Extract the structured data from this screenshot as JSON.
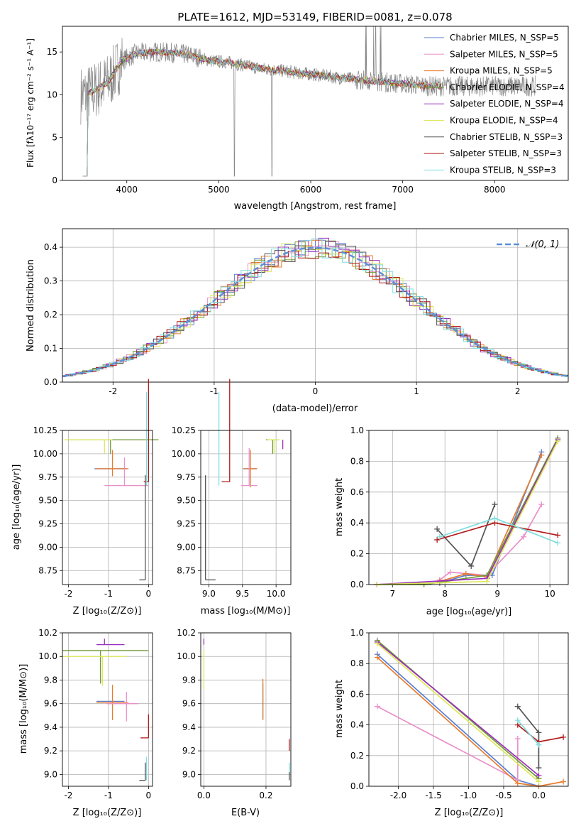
{
  "palette": {
    "chabrier_miles": "#5b7fd1",
    "salpeter_miles": "#e98fc9",
    "kroupa_miles": "#e87c2e",
    "chabrier_elodie": "#6f9a35",
    "salpeter_elodie": "#9b2fbd",
    "kroupa_elodie": "#dde85a",
    "chabrier_stelib": "#555555",
    "salpeter_stelib": "#b11d1d",
    "kroupa_stelib": "#7fdede",
    "grid": "#b0b0b0"
  },
  "chart_data": [
    {
      "id": "spectrum",
      "type": "line",
      "title": "PLATE=1612, MJD=53149, FIBERID=0081, z=0.078",
      "xlabel": "wavelength [Angstrom, rest frame]",
      "ylabel": "Flux [fλ10⁻¹⁷ erg cm⁻² s⁻¹ A⁻¹]",
      "xlim": [
        3300,
        8800
      ],
      "ylim": [
        0,
        18
      ],
      "xticks": [
        4000,
        5000,
        6000,
        7000,
        8000
      ],
      "yticks": [
        0,
        5,
        10,
        15
      ],
      "grid": false,
      "legend_position": "upper-right",
      "legend": [
        "Chabrier MILES, N_SSP=5",
        "Salpeter MILES, N_SSP=5",
        "Kroupa MILES, N_SSP=5",
        "Chabrier ELODIE, N_SSP=4",
        "Salpeter ELODIE, N_SSP=4",
        "Kroupa ELODIE, N_SSP=4",
        "Chabrier STELIB, N_SSP=3",
        "Salpeter STELIB, N_SSP=3",
        "Kroupa STELIB, N_SSP=3"
      ],
      "legend_colors": [
        "#5b7fd1",
        "#e98fc9",
        "#e87c2e",
        "#6f9a35",
        "#9b2fbd",
        "#dde85a",
        "#555555",
        "#b11d1d",
        "#7fdede"
      ],
      "continuum": {
        "x": [
          3550,
          3650,
          3800,
          3950,
          4100,
          4300,
          4500,
          4700,
          4900,
          5100,
          5300,
          5500,
          5700,
          5900,
          6100,
          6300,
          6500,
          6700,
          6900,
          7100,
          7300,
          7450
        ],
        "y": [
          10.0,
          10.5,
          11.5,
          14.0,
          14.8,
          15.0,
          14.9,
          14.6,
          14.0,
          13.8,
          13.4,
          13.0,
          12.8,
          12.5,
          12.3,
          12.0,
          11.8,
          11.6,
          11.4,
          11.2,
          11.0,
          11.0
        ]
      },
      "data_extent": [
        3500,
        8450
      ]
    },
    {
      "id": "residuals",
      "type": "histogram",
      "xlabel": "(data-model)/error",
      "ylabel": "Normed distribution",
      "xlim": [
        -2.5,
        2.5
      ],
      "ylim": [
        0,
        0.455
      ],
      "xticks": [
        -2,
        -1,
        0,
        1,
        2
      ],
      "yticks": [
        0.0,
        0.1,
        0.2,
        0.3,
        0.4
      ],
      "grid": true,
      "legend": [
        "𝒩(0, 1)"
      ],
      "legend_position": "upper-right",
      "gaussian": {
        "mean": 0,
        "sigma": 1
      }
    },
    {
      "id": "age_vs_Z",
      "type": "errorbar",
      "xlabel": "Z [log₁₀(Z/Z⊙)]",
      "ylabel": "age  [log₁₀(age/yr)]",
      "xlim": [
        -2.15,
        0.1
      ],
      "ylim": [
        8.6,
        10.25
      ],
      "xticks": [
        -2,
        -1,
        0
      ],
      "yticks": [
        8.75,
        9.0,
        9.25,
        9.5,
        9.75,
        10.0,
        10.25
      ],
      "grid": true,
      "points": [
        {
          "series": "chabrier_elodie",
          "x": -0.95,
          "y": 10.15,
          "xerr": [
            1.1,
            1.2
          ],
          "yerr": [
            0.15,
            0.0
          ]
        },
        {
          "series": "kroupa_elodie",
          "x": -1.1,
          "y": 10.15,
          "xerr": [
            1.0,
            0.2
          ],
          "yerr": [
            0.15,
            0.0
          ]
        },
        {
          "series": "chabrier_miles",
          "x": -0.95,
          "y": 9.84,
          "xerr": [
            0.4,
            0.4
          ],
          "yerr": [
            0.0,
            0.0
          ]
        },
        {
          "series": "kroupa_miles",
          "x": -0.9,
          "y": 9.84,
          "xerr": [
            0.4,
            0.4
          ],
          "yerr": [
            0.08,
            0.2
          ]
        },
        {
          "series": "salpeter_miles",
          "x": -0.6,
          "y": 9.66,
          "xerr": [
            0.5,
            0.6
          ],
          "yerr": [
            0.0,
            0.3
          ]
        },
        {
          "series": "chabrier_stelib",
          "x": -0.08,
          "y": 8.65,
          "xerr": [
            0.15,
            0.0
          ],
          "yerr": [
            0.0,
            1.12
          ]
        },
        {
          "series": "salpeter_stelib",
          "x": 0.0,
          "y": 9.7,
          "xerr": [
            0.12,
            0.0
          ],
          "yerr": [
            0.0,
            1.1
          ]
        },
        {
          "series": "kroupa_stelib",
          "x": -0.05,
          "y": 9.66,
          "xerr": [
            0.0,
            0.0
          ],
          "yerr": [
            0.0,
            1.0
          ]
        }
      ]
    },
    {
      "id": "age_vs_mass",
      "type": "errorbar",
      "xlabel": "mass [log₁₀(M/M⊙)]",
      "ylabel": "",
      "xlim": [
        8.88,
        10.22
      ],
      "ylim": [
        8.6,
        10.25
      ],
      "xticks": [
        9.0,
        9.5,
        10.0
      ],
      "yticks": [
        8.75,
        9.0,
        9.25,
        9.5,
        9.75,
        10.0,
        10.25
      ],
      "grid": true,
      "points": [
        {
          "series": "chabrier_elodie",
          "x": 9.95,
          "y": 10.15,
          "xerr": [
            0.1,
            0.1
          ],
          "yerr": [
            0.15,
            0.0
          ]
        },
        {
          "series": "kroupa_elodie",
          "x": 9.97,
          "y": 10.15,
          "xerr": [
            0.1,
            0.08
          ],
          "yerr": [
            0.15,
            0.0
          ]
        },
        {
          "series": "salpeter_elodie",
          "x": 10.1,
          "y": 10.15,
          "xerr": [
            0.0,
            0.0
          ],
          "yerr": [
            0.1,
            0.0
          ]
        },
        {
          "series": "chabrier_miles",
          "x": 9.61,
          "y": 9.84,
          "xerr": [
            0.1,
            0.1
          ],
          "yerr": [
            0.0,
            0.0
          ]
        },
        {
          "series": "kroupa_miles",
          "x": 9.62,
          "y": 9.84,
          "xerr": [
            0.1,
            0.1
          ],
          "yerr": [
            0.2,
            0.2
          ]
        },
        {
          "series": "salpeter_miles",
          "x": 9.6,
          "y": 9.66,
          "xerr": [
            0.12,
            0.12
          ],
          "yerr": [
            0.0,
            0.4
          ]
        },
        {
          "series": "chabrier_stelib",
          "x": 8.95,
          "y": 8.65,
          "xerr": [
            0.0,
            0.15
          ],
          "yerr": [
            0.0,
            1.12
          ]
        },
        {
          "series": "salpeter_stelib",
          "x": 9.31,
          "y": 9.7,
          "xerr": [
            0.12,
            0.0
          ],
          "yerr": [
            0.0,
            1.1
          ]
        },
        {
          "series": "kroupa_stelib",
          "x": 9.15,
          "y": 9.66,
          "xerr": [
            0.0,
            0.0
          ],
          "yerr": [
            0.0,
            1.0
          ]
        }
      ]
    },
    {
      "id": "weight_vs_age",
      "type": "line",
      "xlabel": "age  [log₁₀(age/yr)]",
      "ylabel": "mass weight",
      "xlim": [
        6.55,
        10.35
      ],
      "ylim": [
        0.0,
        1.0
      ],
      "xticks": [
        7,
        8,
        9,
        10
      ],
      "yticks": [
        0.0,
        0.2,
        0.4,
        0.6,
        0.8,
        1.0
      ],
      "grid": true,
      "series": [
        {
          "key": "chabrier_miles",
          "x": [
            7.9,
            8.4,
            8.9,
            9.84
          ],
          "y": [
            0.01,
            0.06,
            0.06,
            0.86
          ]
        },
        {
          "key": "salpeter_miles",
          "x": [
            7.9,
            8.1,
            8.8,
            9.5,
            9.84
          ],
          "y": [
            0.03,
            0.08,
            0.06,
            0.31,
            0.52
          ]
        },
        {
          "key": "kroupa_miles",
          "x": [
            7.9,
            8.4,
            8.8,
            9.84
          ],
          "y": [
            0.02,
            0.07,
            0.05,
            0.84
          ]
        },
        {
          "key": "chabrier_elodie",
          "x": [
            6.7,
            7.6,
            8.8,
            10.15
          ],
          "y": [
            0.0,
            0.0,
            0.06,
            0.95
          ]
        },
        {
          "key": "salpeter_elodie",
          "x": [
            6.7,
            8.8,
            10.15
          ],
          "y": [
            0.0,
            0.04,
            0.94
          ]
        },
        {
          "key": "kroupa_elodie",
          "x": [
            6.7,
            8.8,
            10.15
          ],
          "y": [
            0.0,
            0.02,
            0.93
          ]
        },
        {
          "key": "chabrier_stelib",
          "x": [
            7.85,
            8.5,
            8.95
          ],
          "y": [
            0.36,
            0.12,
            0.52
          ]
        },
        {
          "key": "salpeter_stelib",
          "x": [
            7.85,
            8.95,
            10.15
          ],
          "y": [
            0.29,
            0.4,
            0.32
          ]
        },
        {
          "key": "kroupa_stelib",
          "x": [
            7.9,
            8.95,
            10.15
          ],
          "y": [
            0.31,
            0.43,
            0.27
          ]
        }
      ]
    },
    {
      "id": "mass_vs_Z",
      "type": "errorbar",
      "xlabel": "Z [log₁₀(Z/Z⊙)]",
      "ylabel": "mass [log₁₀(M/M⊙)]",
      "xlim": [
        -2.15,
        0.1
      ],
      "ylim": [
        8.9,
        10.2
      ],
      "xticks": [
        -2,
        -1,
        0
      ],
      "yticks": [
        9.0,
        9.2,
        9.4,
        9.6,
        9.8,
        10.0,
        10.2
      ],
      "grid": true,
      "points": [
        {
          "series": "salpeter_elodie",
          "x": -1.1,
          "y": 10.1,
          "xerr": [
            0.2,
            0.5
          ],
          "yerr": [
            0.0,
            0.05
          ]
        },
        {
          "series": "chabrier_elodie",
          "x": -1.2,
          "y": 10.05,
          "xerr": [
            0.95,
            1.2
          ],
          "yerr": [
            0.28,
            0.0
          ]
        },
        {
          "series": "kroupa_elodie",
          "x": -1.15,
          "y": 10.0,
          "xerr": [
            1.0,
            0.6
          ],
          "yerr": [
            0.25,
            0.0
          ]
        },
        {
          "series": "chabrier_miles",
          "x": -0.95,
          "y": 9.62,
          "xerr": [
            0.35,
            0.35
          ],
          "yerr": [
            0.0,
            0.0
          ]
        },
        {
          "series": "kroupa_miles",
          "x": -0.9,
          "y": 9.61,
          "xerr": [
            0.4,
            0.4
          ],
          "yerr": [
            0.15,
            0.15
          ]
        },
        {
          "series": "salpeter_miles",
          "x": -0.55,
          "y": 9.6,
          "xerr": [
            0.5,
            0.3
          ],
          "yerr": [
            0.15,
            0.1
          ]
        },
        {
          "series": "salpeter_stelib",
          "x": 0.0,
          "y": 9.31,
          "xerr": [
            0.2,
            0.0
          ],
          "yerr": [
            0.0,
            0.2
          ]
        },
        {
          "series": "kroupa_stelib",
          "x": -0.05,
          "y": 9.15,
          "xerr": [
            0.0,
            0.0
          ],
          "yerr": [
            0.2,
            0.0
          ]
        },
        {
          "series": "chabrier_stelib",
          "x": -0.08,
          "y": 8.95,
          "xerr": [
            0.15,
            0.0
          ],
          "yerr": [
            0.0,
            0.15
          ]
        }
      ]
    },
    {
      "id": "mass_vs_ebv",
      "type": "errorbar",
      "xlabel": "E(B-V)",
      "ylabel": "",
      "xlim": [
        -0.01,
        0.28
      ],
      "ylim": [
        8.9,
        10.2
      ],
      "xticks": [
        0.0,
        0.2
      ],
      "yticks": [
        9.0,
        9.2,
        9.4,
        9.6,
        9.8,
        10.0,
        10.2
      ],
      "grid": true,
      "points": [
        {
          "series": "salpeter_elodie",
          "x": 0.0,
          "y": 10.1,
          "xerr": [
            0.0,
            0.0
          ],
          "yerr": [
            0.0,
            0.05
          ]
        },
        {
          "series": "kroupa_elodie",
          "x": 0.0,
          "y": 9.9,
          "xerr": [
            0.0,
            0.0
          ],
          "yerr": [
            0.18,
            0.15
          ]
        },
        {
          "series": "chabrier_miles",
          "x": 0.19,
          "y": 9.62,
          "xerr": [
            0.0,
            0.0
          ],
          "yerr": [
            0.15,
            0.15
          ]
        },
        {
          "series": "kroupa_miles",
          "x": 0.19,
          "y": 9.61,
          "xerr": [
            0.0,
            0.0
          ],
          "yerr": [
            0.15,
            0.2
          ]
        },
        {
          "series": "salpeter_stelib",
          "x": 0.275,
          "y": 9.2,
          "xerr": [
            0.0,
            0.0
          ],
          "yerr": [
            0.0,
            0.1
          ]
        },
        {
          "series": "kroupa_stelib",
          "x": 0.275,
          "y": 9.1,
          "xerr": [
            0.0,
            0.0
          ],
          "yerr": [
            0.1,
            0.0
          ]
        },
        {
          "series": "chabrier_stelib",
          "x": 0.275,
          "y": 9.02,
          "xerr": [
            0.0,
            0.0
          ],
          "yerr": [
            0.07,
            0.0
          ]
        }
      ]
    },
    {
      "id": "weight_vs_Z",
      "type": "line",
      "xlabel": "Z [log₁₀(Z/Z⊙)]",
      "ylabel": "mass weight",
      "xlim": [
        -2.42,
        0.42
      ],
      "ylim": [
        0.0,
        1.0
      ],
      "xticks": [
        -2.0,
        -1.5,
        -1.0,
        -0.5,
        0.0
      ],
      "yticks": [
        0.0,
        0.2,
        0.4,
        0.6,
        0.8,
        1.0
      ],
      "grid": true,
      "series": [
        {
          "key": "chabrier_miles",
          "x": [
            -2.3,
            -0.3,
            0.0
          ],
          "y": [
            0.86,
            0.04,
            0.0
          ]
        },
        {
          "key": "salpeter_miles",
          "x": [
            -2.3,
            -0.3,
            -0.3
          ],
          "y": [
            0.52,
            0.04,
            0.31
          ]
        },
        {
          "key": "kroupa_miles",
          "x": [
            -2.3,
            -0.3,
            0.0,
            0.35
          ],
          "y": [
            0.84,
            0.02,
            0.0,
            0.03
          ]
        },
        {
          "key": "chabrier_elodie",
          "x": [
            -2.3,
            0.0
          ],
          "y": [
            0.95,
            0.05
          ]
        },
        {
          "key": "salpeter_elodie",
          "x": [
            -2.3,
            0.0
          ],
          "y": [
            0.94,
            0.07
          ]
        },
        {
          "key": "kroupa_elodie",
          "x": [
            -2.3,
            0.0
          ],
          "y": [
            0.93,
            0.03
          ]
        },
        {
          "key": "chabrier_stelib",
          "x": [
            -0.3,
            0.0,
            0.0
          ],
          "y": [
            0.52,
            0.35,
            0.12
          ]
        },
        {
          "key": "salpeter_stelib",
          "x": [
            -0.3,
            0.0,
            0.35
          ],
          "y": [
            0.4,
            0.29,
            0.32
          ]
        },
        {
          "key": "kroupa_stelib",
          "x": [
            -0.3,
            0.0
          ],
          "y": [
            0.43,
            0.27
          ]
        }
      ]
    }
  ]
}
